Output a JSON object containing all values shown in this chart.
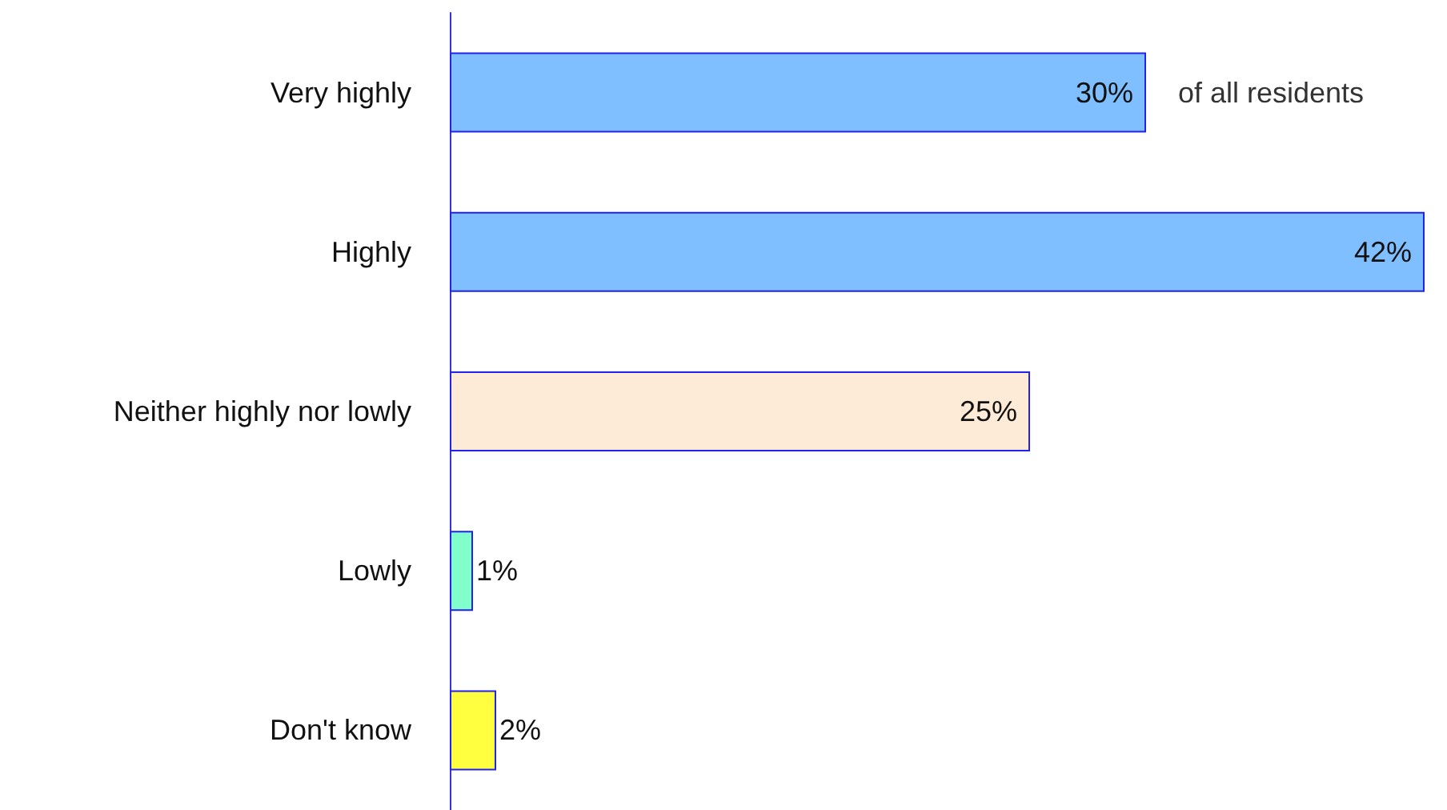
{
  "chart_data": {
    "type": "bar",
    "orientation": "horizontal",
    "categories": [
      "Very highly",
      "Highly",
      "Neither highly nor lowly",
      "Lowly",
      "Don't know"
    ],
    "values": [
      30,
      42,
      25,
      1,
      2
    ],
    "colors": [
      "#80bfff",
      "#80bfff",
      "#fdebd8",
      "#80ffcc",
      "#ffff40"
    ],
    "value_labels": [
      "30%",
      "42%",
      "25%",
      "1%",
      "2%"
    ],
    "annotations": [
      {
        "text": "of all residents",
        "x": 30,
        "y": "Very highly"
      }
    ]
  }
}
